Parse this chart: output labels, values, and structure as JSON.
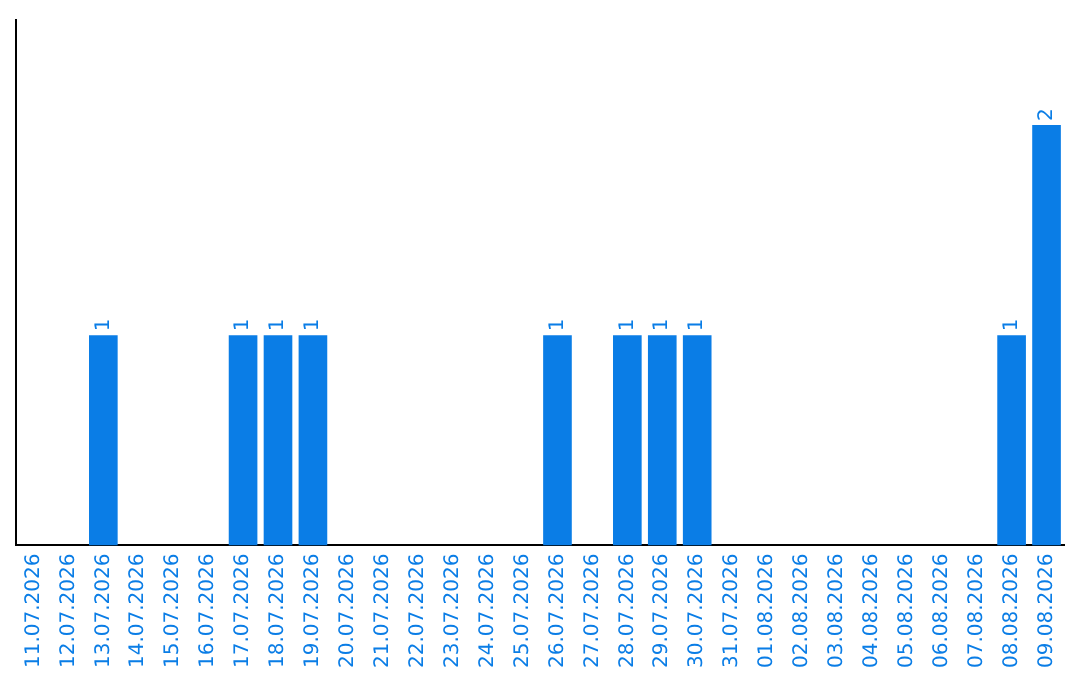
{
  "chart_data": {
    "type": "bar",
    "categories": [
      "11.07.2026",
      "12.07.2026",
      "13.07.2026",
      "14.07.2026",
      "15.07.2026",
      "16.07.2026",
      "17.07.2026",
      "18.07.2026",
      "19.07.2026",
      "20.07.2026",
      "21.07.2026",
      "22.07.2026",
      "23.07.2026",
      "24.07.2026",
      "25.07.2026",
      "26.07.2026",
      "27.07.2026",
      "28.07.2026",
      "29.07.2026",
      "30.07.2026",
      "31.07.2026",
      "01.08.2026",
      "02.08.2026",
      "03.08.2026",
      "04.08.2026",
      "05.08.2026",
      "06.08.2026",
      "07.08.2026",
      "08.08.2026",
      "09.08.2026"
    ],
    "values": [
      0,
      0,
      1,
      0,
      0,
      0,
      1,
      1,
      1,
      0,
      0,
      0,
      0,
      0,
      0,
      1,
      0,
      1,
      1,
      1,
      0,
      0,
      0,
      0,
      0,
      0,
      0,
      0,
      1,
      2
    ],
    "value_labels": [
      null,
      null,
      "1",
      null,
      null,
      null,
      "1",
      "1",
      "1",
      null,
      null,
      null,
      null,
      null,
      null,
      "1",
      null,
      "1",
      "1",
      "1",
      null,
      null,
      null,
      null,
      null,
      null,
      null,
      null,
      "1",
      "2"
    ],
    "color": "#0a7de6",
    "tick_labels": "x",
    "grid": false,
    "legend": false
  }
}
